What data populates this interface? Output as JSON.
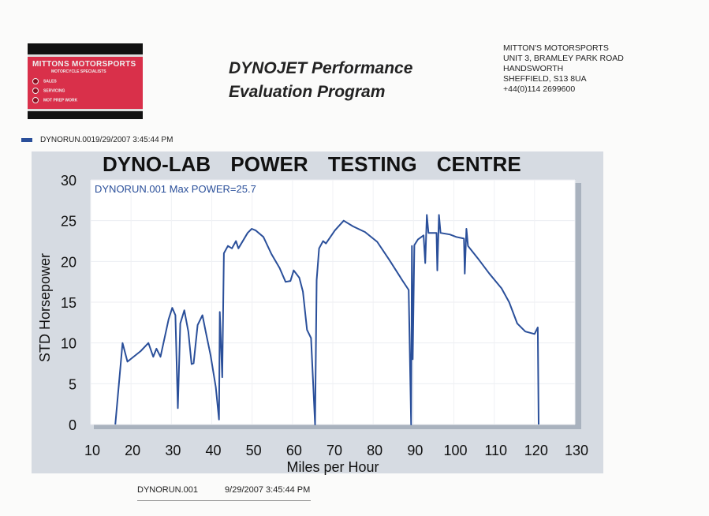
{
  "logo": {
    "name": "MITTONS MOTORSPORTS",
    "tagline": "MOTORCYCLE SPECIALISTS",
    "services": [
      "SALES",
      "SERVICING",
      "MOT PREP WORK"
    ]
  },
  "header": {
    "title_line1": "DYNOJET Performance",
    "title_line2": "Evaluation Program"
  },
  "address": [
    "MITTON'S MOTORSPORTS",
    "UNIT 3, BRAMLEY PARK ROAD",
    "HANDSWORTH",
    "SHEFFIELD, S13 8UA",
    "+44(0)114 2699600"
  ],
  "legend": {
    "label": "DYNORUN.0019/29/2007 3:45:44 PM",
    "color": "#2a4f9a"
  },
  "footer": {
    "run": "DYNORUN.001",
    "datetime": "9/29/2007 3:45:44 PM"
  },
  "chart_data": {
    "type": "line",
    "title": "DYNO-LAB   POWER TESTING CENTRE",
    "annotation": "DYNORUN.001  Max POWER=25.7",
    "xlabel": "Miles per Hour",
    "ylabel": "STD Horsepower",
    "xlim": [
      10,
      130
    ],
    "ylim": [
      0,
      30
    ],
    "xticks": [
      10,
      20,
      30,
      40,
      50,
      60,
      70,
      80,
      90,
      100,
      110,
      120,
      130
    ],
    "yticks": [
      0,
      5,
      10,
      15,
      20,
      25,
      30
    ],
    "grid": true,
    "series": [
      {
        "name": "DYNORUN.001",
        "color": "#2a4f9a",
        "points": [
          [
            16.1,
            0
          ],
          [
            17.9,
            10
          ],
          [
            19.1,
            7.7
          ],
          [
            22.4,
            9
          ],
          [
            24.3,
            10
          ],
          [
            25.5,
            8.3
          ],
          [
            26.3,
            9.3
          ],
          [
            27.3,
            8.3
          ],
          [
            29.3,
            12.9
          ],
          [
            30.2,
            14.3
          ],
          [
            31,
            13.4
          ],
          [
            31.6,
            2
          ],
          [
            32.2,
            12.4
          ],
          [
            33.2,
            14
          ],
          [
            34.2,
            11.4
          ],
          [
            35,
            7.4
          ],
          [
            35.5,
            7.5
          ],
          [
            36.5,
            12.2
          ],
          [
            37.7,
            13.4
          ],
          [
            38.5,
            11.4
          ],
          [
            39.7,
            8.5
          ],
          [
            41,
            4.6
          ],
          [
            41.8,
            0.6
          ],
          [
            42,
            13.8
          ],
          [
            42.6,
            5.8
          ],
          [
            43,
            21
          ],
          [
            44,
            21.9
          ],
          [
            45,
            21.6
          ],
          [
            46,
            22.5
          ],
          [
            46.6,
            21.6
          ],
          [
            48.9,
            23.5
          ],
          [
            49.9,
            24
          ],
          [
            50.9,
            23.8
          ],
          [
            52.8,
            23
          ],
          [
            54.8,
            20.9
          ],
          [
            56.8,
            19.2
          ],
          [
            58.3,
            17.5
          ],
          [
            59.5,
            17.6
          ],
          [
            60.3,
            18.9
          ],
          [
            61.7,
            18
          ],
          [
            62.6,
            16.3
          ],
          [
            63.6,
            11.6
          ],
          [
            64.6,
            10.6
          ],
          [
            65.6,
            0
          ],
          [
            66,
            17.7
          ],
          [
            66.6,
            21.6
          ],
          [
            67.6,
            22.5
          ],
          [
            68.3,
            22.2
          ],
          [
            70.5,
            23.8
          ],
          [
            72.7,
            25
          ],
          [
            75,
            24.3
          ],
          [
            78,
            23.6
          ],
          [
            81,
            22.4
          ],
          [
            84,
            20.2
          ],
          [
            87.2,
            17.7
          ],
          [
            88.8,
            16.5
          ],
          [
            89.4,
            0
          ],
          [
            89.6,
            21.9
          ],
          [
            89.8,
            8
          ],
          [
            90.2,
            22
          ],
          [
            91.1,
            22.7
          ],
          [
            92.5,
            23.2
          ],
          [
            92.9,
            19.8
          ],
          [
            93.3,
            25.7
          ],
          [
            93.7,
            23.5
          ],
          [
            95.7,
            23.5
          ],
          [
            95.9,
            18.9
          ],
          [
            96.3,
            25.7
          ],
          [
            96.7,
            23.5
          ],
          [
            99,
            23.3
          ],
          [
            100.6,
            23
          ],
          [
            102.5,
            22.8
          ],
          [
            102.7,
            18.5
          ],
          [
            103.1,
            24
          ],
          [
            103.5,
            21.9
          ],
          [
            105.9,
            20.4
          ],
          [
            108.8,
            18.5
          ],
          [
            111.8,
            16.7
          ],
          [
            113.7,
            15
          ],
          [
            115.7,
            12.4
          ],
          [
            117.7,
            11.4
          ],
          [
            120,
            11.1
          ],
          [
            120.8,
            11.9
          ],
          [
            121,
            0
          ]
        ]
      }
    ]
  }
}
